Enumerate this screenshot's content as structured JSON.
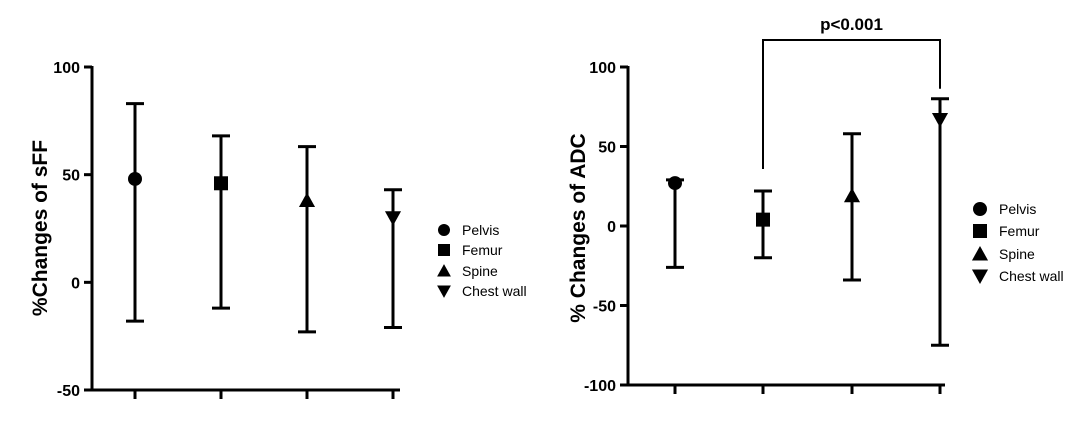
{
  "chart_data": [
    {
      "type": "scatter",
      "title": "",
      "xlabel": "",
      "ylabel": "%Changes of sFF",
      "ylim": [
        -50,
        100
      ],
      "yticks": [
        -50,
        0,
        50,
        100
      ],
      "categories": [
        "Pelvis",
        "Femur",
        "Spine",
        "Chest wall"
      ],
      "series": [
        {
          "name": "Pelvis",
          "marker": "circle",
          "mean": 48,
          "upper": 83,
          "lower": -18
        },
        {
          "name": "Femur",
          "marker": "square",
          "mean": 46,
          "upper": 68,
          "lower": -12
        },
        {
          "name": "Spine",
          "marker": "triangle-up",
          "mean": 38,
          "upper": 63,
          "lower": -23
        },
        {
          "name": "Chest wall",
          "marker": "triangle-down",
          "mean": 30,
          "upper": 43,
          "lower": -21
        }
      ],
      "error_bars": true,
      "grid": false,
      "legend_position": "right"
    },
    {
      "type": "scatter",
      "title": "",
      "xlabel": "",
      "ylabel": "% Changes of ADC",
      "ylim": [
        -100,
        100
      ],
      "yticks": [
        -100,
        -50,
        0,
        50,
        100
      ],
      "categories": [
        "Pelvis",
        "Femur",
        "Spine",
        "Chest wall"
      ],
      "series": [
        {
          "name": "Pelvis",
          "marker": "circle",
          "mean": 27,
          "upper": 29,
          "lower": -26
        },
        {
          "name": "Femur",
          "marker": "square",
          "mean": 4,
          "upper": 22,
          "lower": -20
        },
        {
          "name": "Spine",
          "marker": "triangle-up",
          "mean": 19,
          "upper": 58,
          "lower": -34
        },
        {
          "name": "Chest wall",
          "marker": "triangle-down",
          "mean": 67,
          "upper": 80,
          "lower": -75
        }
      ],
      "error_bars": true,
      "grid": false,
      "legend_position": "right",
      "annotations": [
        {
          "text": "p<0.001",
          "from_category": "Femur",
          "to_category": "Chest wall"
        }
      ]
    }
  ]
}
